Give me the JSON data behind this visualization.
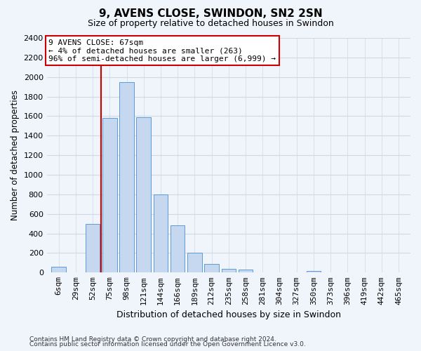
{
  "title": "9, AVENS CLOSE, SWINDON, SN2 2SN",
  "subtitle": "Size of property relative to detached houses in Swindon",
  "xlabel": "Distribution of detached houses by size in Swindon",
  "ylabel": "Number of detached properties",
  "categories": [
    "6sqm",
    "29sqm",
    "52sqm",
    "75sqm",
    "98sqm",
    "121sqm",
    "144sqm",
    "166sqm",
    "189sqm",
    "212sqm",
    "235sqm",
    "258sqm",
    "281sqm",
    "304sqm",
    "327sqm",
    "350sqm",
    "373sqm",
    "396sqm",
    "419sqm",
    "442sqm",
    "465sqm"
  ],
  "values": [
    60,
    0,
    500,
    1580,
    1950,
    1590,
    800,
    480,
    200,
    90,
    35,
    30,
    0,
    0,
    0,
    20,
    0,
    0,
    0,
    0,
    0
  ],
  "bar_color": "#c5d8f0",
  "bar_edge_color": "#5b9bd5",
  "vline_color": "#cc0000",
  "annotation_text": "9 AVENS CLOSE: 67sqm\n← 4% of detached houses are smaller (263)\n96% of semi-detached houses are larger (6,999) →",
  "annotation_box_color": "white",
  "annotation_box_edge_color": "#cc0000",
  "ylim": [
    0,
    2400
  ],
  "yticks": [
    0,
    200,
    400,
    600,
    800,
    1000,
    1200,
    1400,
    1600,
    1800,
    2000,
    2200,
    2400
  ],
  "bg_color": "#f0f4fb",
  "plot_bg_color": "#f0f4fb",
  "grid_color": "#d0d8e8",
  "footer1": "Contains HM Land Registry data © Crown copyright and database right 2024.",
  "footer2": "Contains public sector information licensed under the Open Government Licence v3.0."
}
